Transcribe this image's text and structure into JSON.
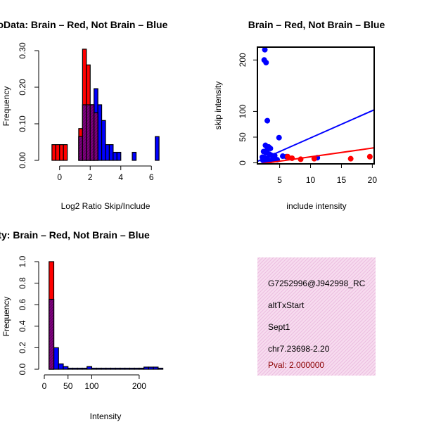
{
  "chart_data": [
    {
      "id": "ratio_hist",
      "type": "bar",
      "title": "RatioData: Brain – Red, Not Brain – Blue",
      "xlabel": "Log2 Ratio Skip/Include",
      "ylabel": "Frequency",
      "xlim": [
        -1,
        7
      ],
      "ylim": [
        0,
        0.3
      ],
      "x_ticks": [
        "0",
        "2",
        "4",
        "6"
      ],
      "y_ticks": [
        "0.00",
        "0.10",
        "0.20",
        "0.30"
      ],
      "bin_width": 0.25,
      "series": [
        {
          "name": "Brain",
          "color": "#ff0000",
          "bin_starts": [
            -0.5,
            -0.25,
            0,
            0.25,
            1.25,
            1.5,
            1.75,
            2.0,
            2.25
          ],
          "values": [
            0.043,
            0.043,
            0.043,
            0.043,
            0.087,
            0.304,
            0.261,
            0.152,
            0.13
          ]
        },
        {
          "name": "Not Brain",
          "color": "#0000ff",
          "bin_starts": [
            1.25,
            1.5,
            1.75,
            2.0,
            2.25,
            2.5,
            2.75,
            3.0,
            3.25,
            3.5,
            3.75,
            4.75,
            6.25
          ],
          "values": [
            0.065,
            0.152,
            0.152,
            0.152,
            0.196,
            0.152,
            0.109,
            0.043,
            0.043,
            0.022,
            0.022,
            0.022,
            0.065
          ]
        }
      ]
    },
    {
      "id": "intensity_scatter",
      "type": "scatter",
      "title": "Brain – Red, Not Brain – Blue",
      "xlabel": "include intensity",
      "ylabel": "skip intensity",
      "xlim": [
        1.4,
        20.3
      ],
      "ylim": [
        -2,
        225
      ],
      "x_ticks": [
        "5",
        "10",
        "15",
        "20"
      ],
      "y_ticks": [
        "0",
        "50",
        "100",
        "200"
      ],
      "series": [
        {
          "name": "Not Brain",
          "color": "#0000ff",
          "points": [
            [
              2.6,
              220
            ],
            [
              2.5,
              200
            ],
            [
              2.8,
              195
            ],
            [
              3.0,
              82
            ],
            [
              4.9,
              49
            ],
            [
              2.7,
              34
            ],
            [
              3.2,
              31
            ],
            [
              3.5,
              28
            ],
            [
              3.0,
              26
            ],
            [
              2.4,
              22
            ],
            [
              2.8,
              19
            ],
            [
              3.3,
              17
            ],
            [
              3.6,
              15
            ],
            [
              4.2,
              14
            ],
            [
              5.5,
              13
            ],
            [
              6.1,
              12
            ],
            [
              2.2,
              11
            ],
            [
              2.5,
              9
            ],
            [
              3.0,
              8
            ],
            [
              3.9,
              7
            ],
            [
              4.6,
              6
            ],
            [
              2.3,
              5
            ],
            [
              11.1,
              10
            ],
            [
              3.4,
              4
            ],
            [
              2.8,
              3
            ]
          ],
          "fit": {
            "intercept": -4.5,
            "slope": 5.3
          }
        },
        {
          "name": "Brain",
          "color": "#ff0000",
          "points": [
            [
              6.3,
              12
            ],
            [
              7.0,
              9
            ],
            [
              8.4,
              7
            ],
            [
              10.6,
              8
            ],
            [
              16.5,
              8
            ],
            [
              19.6,
              12
            ]
          ],
          "fit": {
            "intercept": -5.3,
            "slope": 1.7
          }
        }
      ]
    },
    {
      "id": "intensity_hist",
      "type": "bar",
      "title": "Exon Line Itensity: Brain – Red, Not Brain – Blue",
      "xlabel": "Intensity",
      "ylabel": "Frequency",
      "xlim": [
        0,
        258
      ],
      "ylim": [
        0,
        1.0
      ],
      "x_ticks": [
        "0",
        "50",
        "100",
        "200"
      ],
      "y_ticks": [
        "0.0",
        "0.2",
        "0.4",
        "0.6",
        "0.8",
        "1.0"
      ],
      "bin_width": 10,
      "series": [
        {
          "name": "Brain",
          "color": "#ff0000",
          "bin_starts": [
            10
          ],
          "values": [
            1.0
          ]
        },
        {
          "name": "Not Brain",
          "color": "#0000ff",
          "bin_starts": [
            10,
            20,
            30,
            40,
            50,
            60,
            70,
            80,
            90,
            100,
            110,
            120,
            130,
            140,
            150,
            160,
            170,
            180,
            190,
            200,
            210,
            220,
            230,
            240
          ],
          "values": [
            0.65,
            0.2,
            0.05,
            0.025,
            0.01,
            0.01,
            0.01,
            0.01,
            0.025,
            0.01,
            0.01,
            0.01,
            0.01,
            0.01,
            0.01,
            0.01,
            0.01,
            0.01,
            0.01,
            0.01,
            0.02,
            0.02,
            0.02,
            0.01
          ]
        }
      ]
    }
  ],
  "info_panel": {
    "background": "#f7dcef",
    "hatch": "#e9b6d9",
    "probe_id": "G7252996@J942998_RC",
    "event_type": "altTxStart",
    "gene": "Sept1",
    "location": "chr7.23698-2.20",
    "pval": "Pval: 2.000000"
  }
}
